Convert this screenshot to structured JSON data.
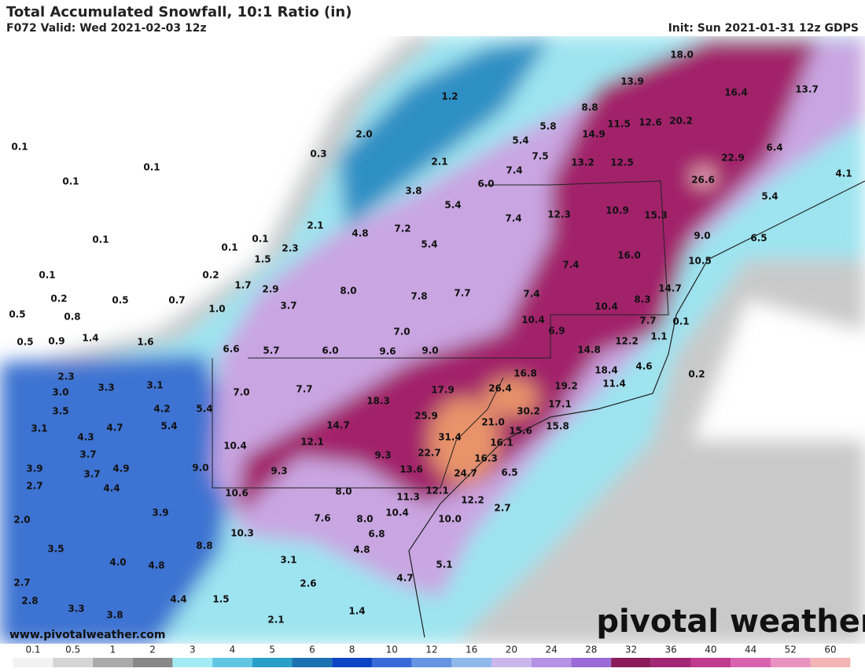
{
  "header": {
    "title": "Total Accumulated Snowfall, 10:1 Ratio (in)",
    "valid": "F072 Valid: Wed 2021-02-03 12z",
    "init": "Init: Sun 2021-01-31 12z GDPS"
  },
  "map": {
    "labels": [
      "0.1",
      "0.1",
      "0.1",
      "0.1",
      "0.1",
      "0.2",
      "0.5",
      "0.8",
      "0.5",
      "0.9",
      "1.4",
      "1.6",
      "0.5",
      "0.7",
      "1.0",
      "0.2",
      "0.1",
      "0.1",
      "1.5",
      "2.3",
      "1.7",
      "2.9",
      "3.7",
      "2.1",
      "4.8",
      "0.3",
      "2.0",
      "1.2",
      "2.1",
      "3.8",
      "6.0",
      "5.4",
      "7.2",
      "5.4",
      "5.8",
      "5.4",
      "7.5",
      "7.4",
      "8.8",
      "14.9",
      "11.5",
      "12.6",
      "20.2",
      "13.9",
      "18.0",
      "16.4",
      "13.7",
      "13.2",
      "12.5",
      "6.4",
      "22.9",
      "26.6",
      "4.1",
      "12.3",
      "10.9",
      "15.3",
      "5.4",
      "9.0",
      "6.5",
      "10.5",
      "7.4",
      "7.4",
      "16.0",
      "8.0",
      "7.8",
      "7.7",
      "7.4",
      "10.4",
      "8.3",
      "14.7",
      "7.7",
      "0.1",
      "1.1",
      "10.4",
      "6.9",
      "12.2",
      "7.0",
      "6.6",
      "5.7",
      "6.0",
      "9.6",
      "9.0",
      "14.8",
      "18.4",
      "4.6",
      "0.2",
      "16.8",
      "19.2",
      "11.4",
      "26.4",
      "17.9",
      "18.3",
      "30.2",
      "17.1",
      "7.0",
      "7.7",
      "25.9",
      "21.0",
      "15.6",
      "15.8",
      "14.7",
      "31.4",
      "16.1",
      "12.1",
      "10.4",
      "22.7",
      "16.3",
      "9.3",
      "9.0",
      "9.3",
      "13.6",
      "24.7",
      "6.5",
      "10.6",
      "8.0",
      "11.3",
      "12.1",
      "12.2",
      "2.7",
      "7.6",
      "8.0",
      "10.4",
      "10.0",
      "10.3",
      "6.8",
      "4.8",
      "8.8",
      "5.1",
      "3.1",
      "4.7",
      "2.6",
      "1.5",
      "1.4",
      "2.1",
      "2.3",
      "3.3",
      "3.1",
      "3.0",
      "3.5",
      "4.2",
      "5.4",
      "5.4",
      "3.1",
      "4.3",
      "4.7",
      "3.7",
      "3.9",
      "4.9",
      "3.7",
      "2.7",
      "4.4",
      "3.9",
      "2.0",
      "3.5",
      "4.0",
      "4.8",
      "2.7",
      "2.8",
      "4.4",
      "3.3",
      "3.8"
    ]
  },
  "watermark": "pivotal weather",
  "url": "www.pivotalweather.com",
  "colorbar": {
    "ticks": [
      "0.1",
      "0.5",
      "1",
      "2",
      "3",
      "4",
      "5",
      "6",
      "8",
      "10",
      "12",
      "16",
      "20",
      "24",
      "28",
      "32",
      "36",
      "40",
      "44",
      "52",
      "60"
    ]
  }
}
